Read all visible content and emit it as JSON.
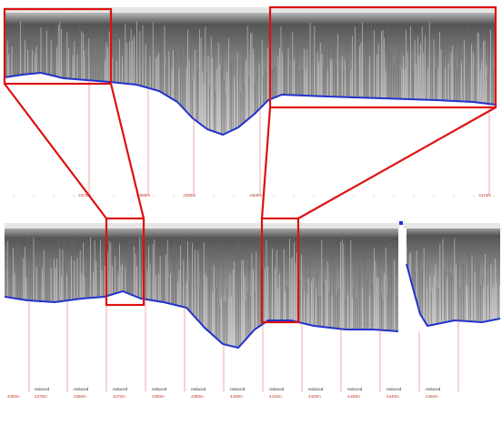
{
  "top_panel": {
    "range_labels": [
      "4370m",
      "4380m",
      "4390m",
      "4400m",
      "4410m"
    ]
  },
  "bottom_panel": {
    "first_label": "4360m",
    "segments": [
      {
        "note": "reduced",
        "label": "4370m"
      },
      {
        "note": "reduced",
        "label": "4380m"
      },
      {
        "note": "reduced",
        "label": "4370m"
      },
      {
        "note": "reduced",
        "label": "4380m"
      },
      {
        "note": "reduced",
        "label": "4390m"
      },
      {
        "note": "reduced",
        "label": "4400m"
      },
      {
        "note": "reduced",
        "label": "4410m"
      },
      {
        "note": "reduced",
        "label": "4420m"
      },
      {
        "note": "reduced",
        "label": "4430m"
      },
      {
        "note": "reduced",
        "label": "4440m"
      },
      {
        "note": "reduced",
        "label": "4450m"
      }
    ]
  }
}
